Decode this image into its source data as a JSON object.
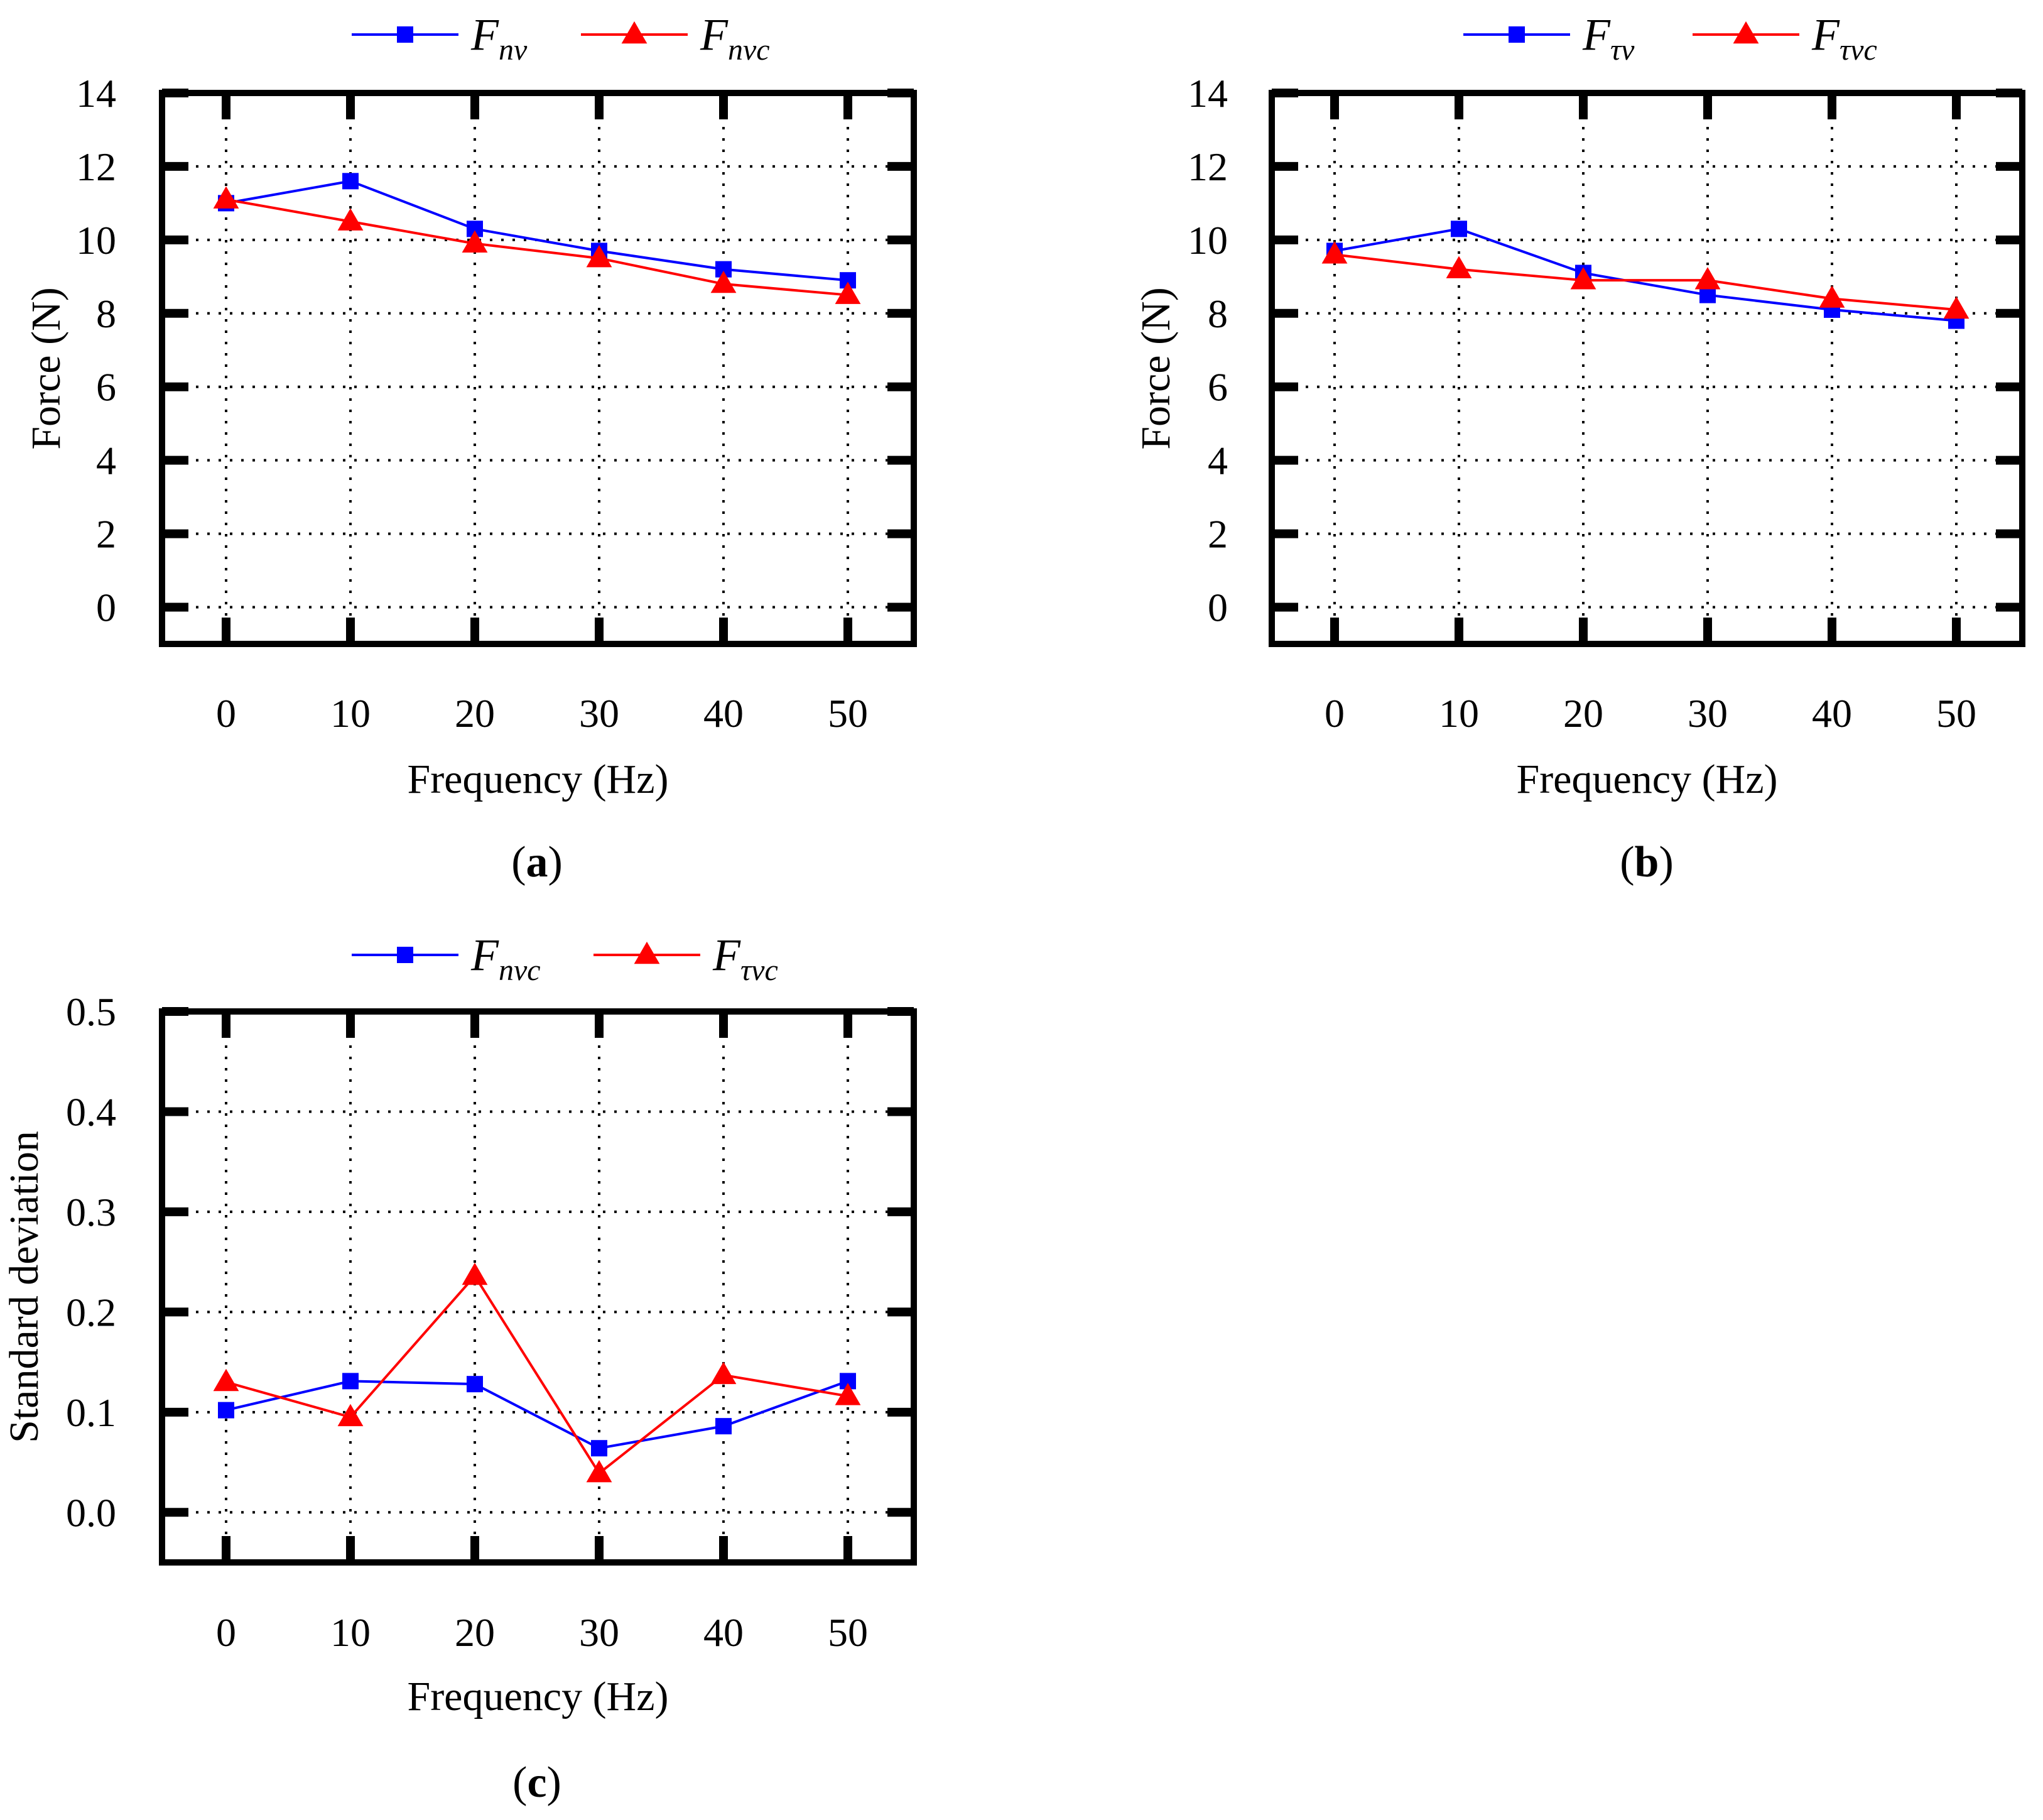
{
  "colors": {
    "blue": "#0000ff",
    "red": "#ff0000",
    "frame": "#000000"
  },
  "chart_data": [
    {
      "id": "a",
      "type": "line",
      "panel_label": "a",
      "x": [
        0,
        10,
        20,
        30,
        40,
        50
      ],
      "xticks": [
        "0",
        "10",
        "20",
        "30",
        "40",
        "50"
      ],
      "yticks": [
        "0",
        "2",
        "4",
        "6",
        "8",
        "10",
        "12",
        "14"
      ],
      "ylim": [
        -1,
        14
      ],
      "xlabel": "Frequency (Hz)",
      "ylabel": "Force (N)",
      "grid": true,
      "legend": "top",
      "series": [
        {
          "name": "F",
          "sub": "nv",
          "color": "#0000ff",
          "marker": "square",
          "values": [
            11.0,
            11.6,
            10.3,
            9.7,
            9.2,
            8.9
          ]
        },
        {
          "name": "F",
          "sub": "nvc",
          "color": "#ff0000",
          "marker": "triangle",
          "values": [
            11.1,
            10.5,
            9.9,
            9.5,
            8.8,
            8.5
          ]
        }
      ]
    },
    {
      "id": "b",
      "type": "line",
      "panel_label": "b",
      "x": [
        0,
        10,
        20,
        30,
        40,
        50
      ],
      "xticks": [
        "0",
        "10",
        "20",
        "30",
        "40",
        "50"
      ],
      "yticks": [
        "0",
        "2",
        "4",
        "6",
        "8",
        "10",
        "12",
        "14"
      ],
      "ylim": [
        -1,
        14
      ],
      "xlabel": "Frequency (Hz)",
      "ylabel": "Force (N)",
      "grid": true,
      "legend": "top",
      "series": [
        {
          "name": "F",
          "sub": "τv",
          "color": "#0000ff",
          "marker": "square",
          "values": [
            9.7,
            10.3,
            9.1,
            8.5,
            8.1,
            7.8
          ]
        },
        {
          "name": "F",
          "sub": "τvc",
          "color": "#ff0000",
          "marker": "triangle",
          "values": [
            9.6,
            9.2,
            8.9,
            8.9,
            8.4,
            8.1
          ]
        }
      ]
    },
    {
      "id": "c",
      "type": "line",
      "panel_label": "c",
      "x": [
        0,
        10,
        20,
        30,
        40,
        50
      ],
      "xticks": [
        "0",
        "10",
        "20",
        "30",
        "40",
        "50"
      ],
      "yticks": [
        "0.0",
        "0.1",
        "0.2",
        "0.3",
        "0.4",
        "0.5"
      ],
      "ylim": [
        -0.05,
        0.5
      ],
      "xlabel": "Frequency (Hz)",
      "ylabel": "Standard deviation",
      "grid": true,
      "legend": "top",
      "series": [
        {
          "name": "F",
          "sub": "nvc",
          "color": "#0000ff",
          "marker": "square",
          "values": [
            0.102,
            0.131,
            0.128,
            0.064,
            0.086,
            0.131
          ]
        },
        {
          "name": "F",
          "sub": "τvc",
          "color": "#ff0000",
          "marker": "triangle",
          "values": [
            0.13,
            0.095,
            0.236,
            0.039,
            0.137,
            0.116
          ]
        }
      ]
    }
  ]
}
